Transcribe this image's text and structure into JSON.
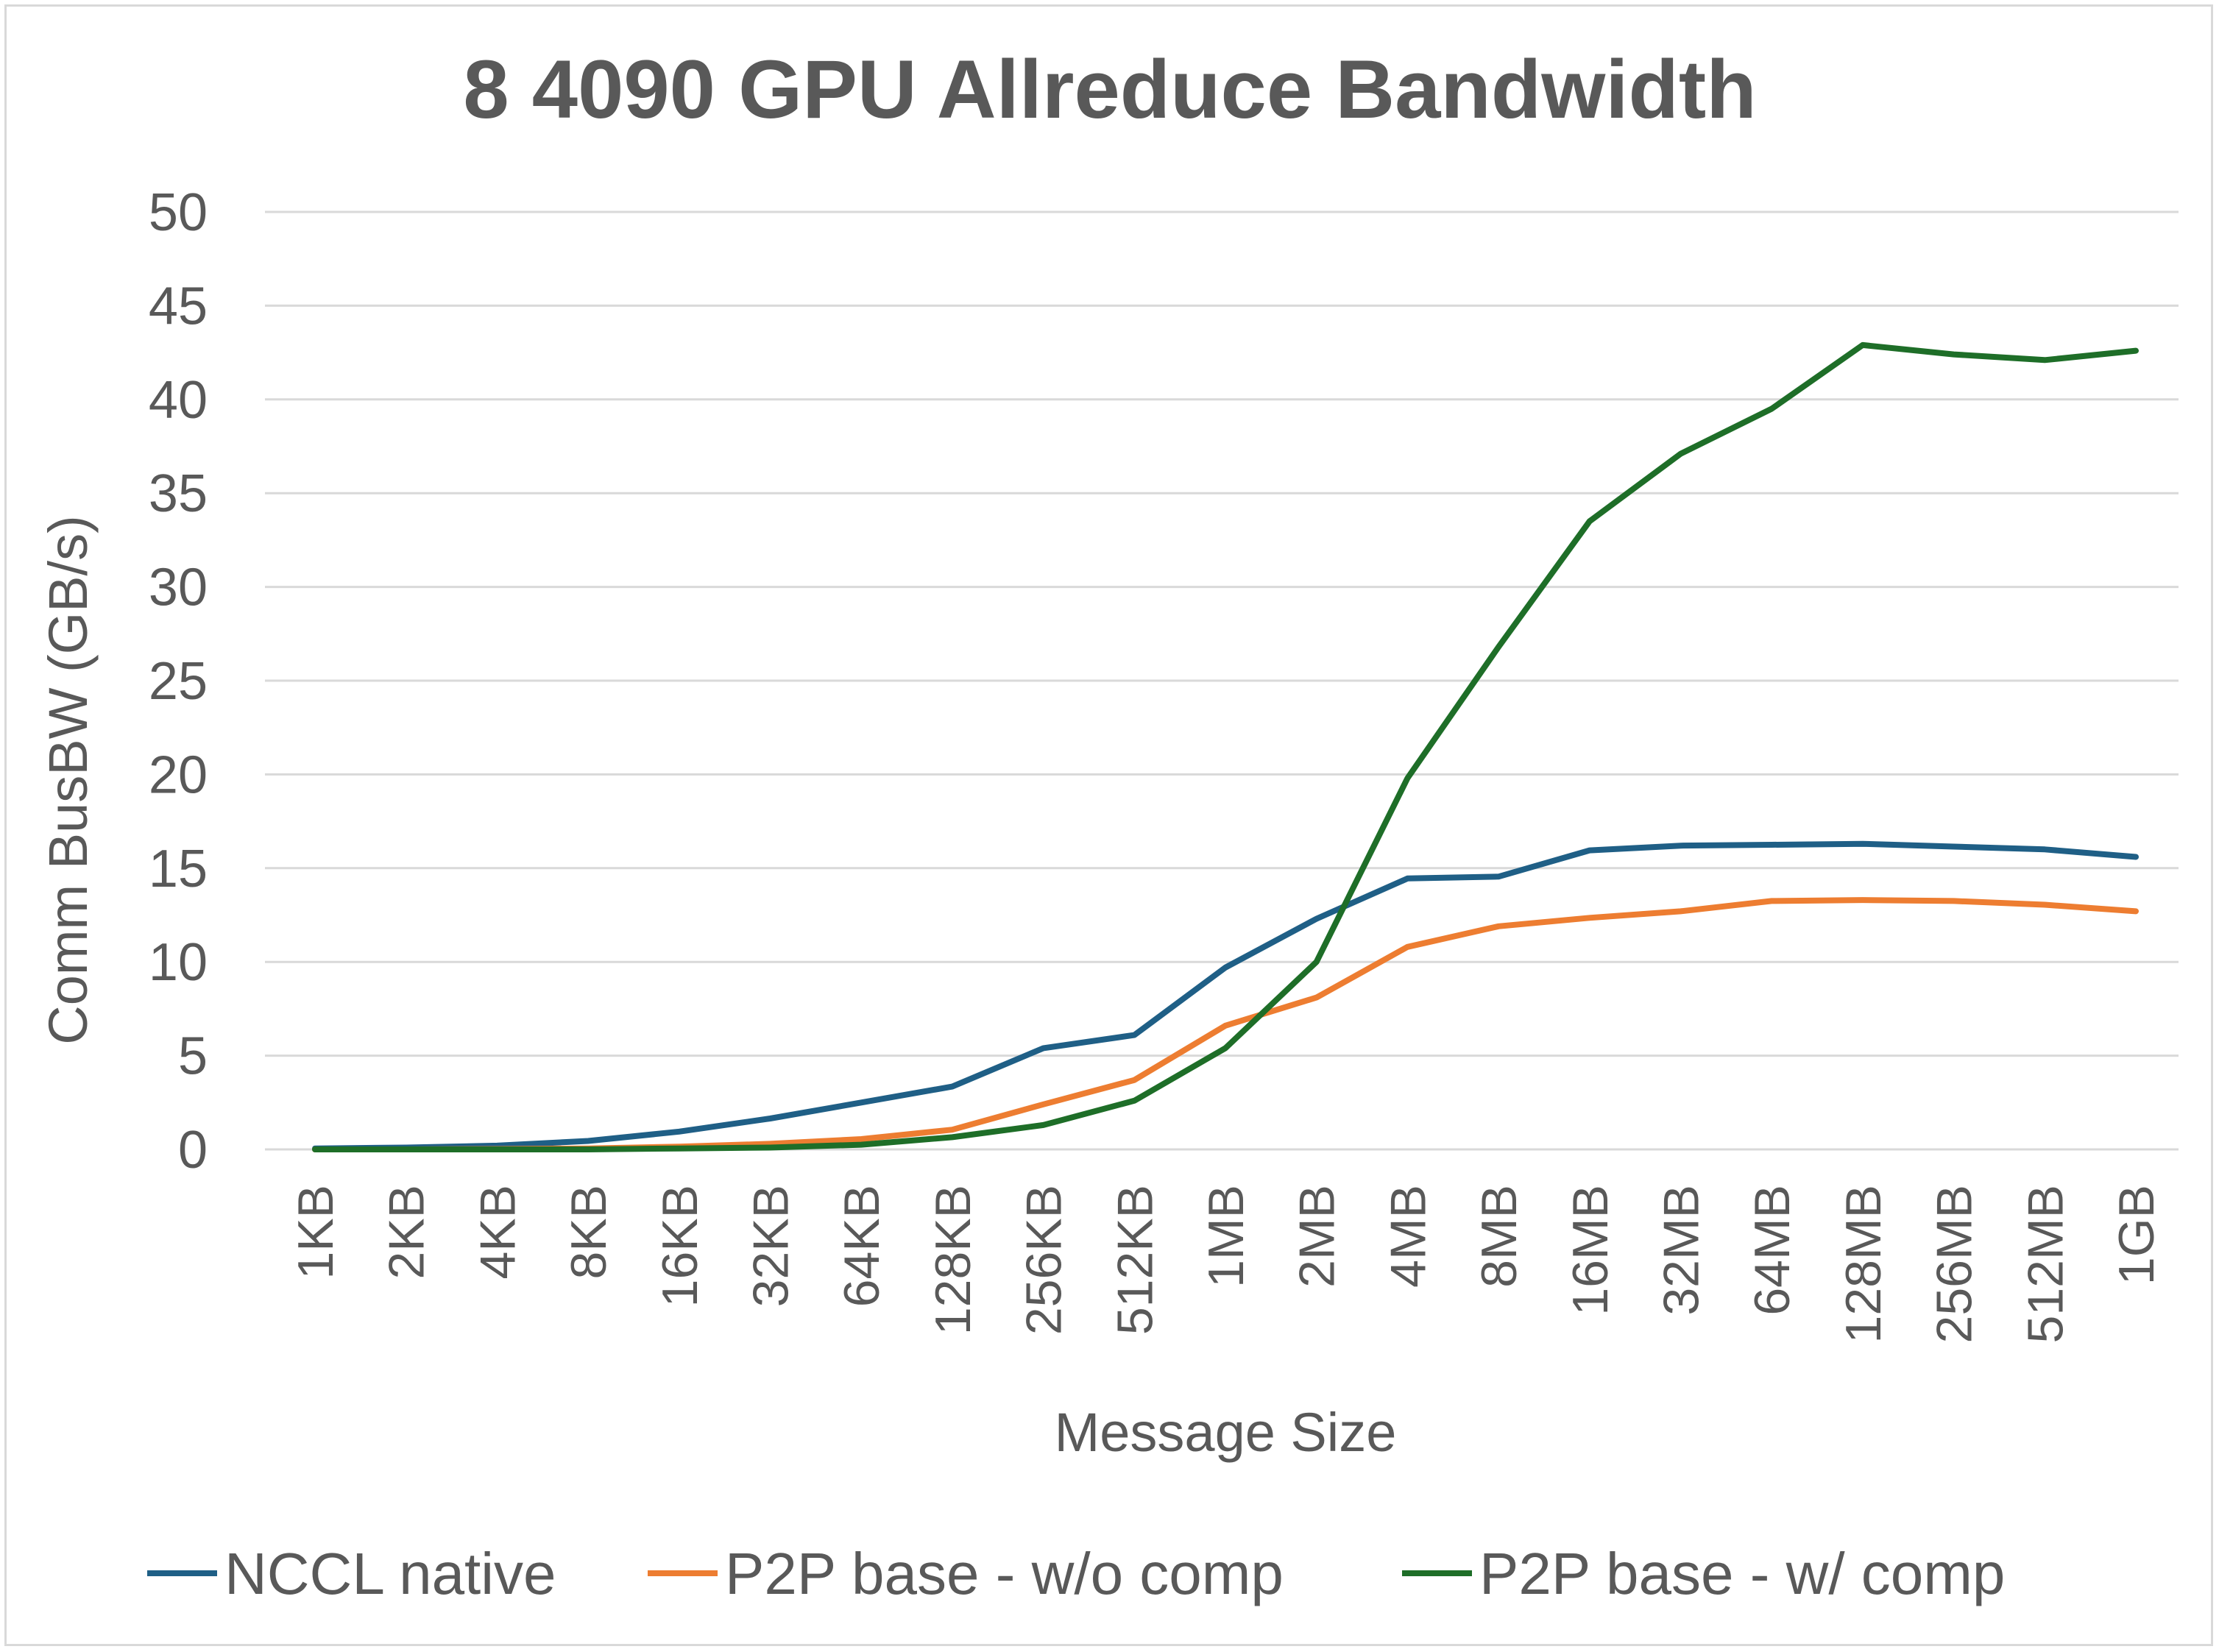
{
  "chart_data": {
    "type": "line",
    "title": "8 4090 GPU Allreduce Bandwidth",
    "xlabel": "Message Size",
    "ylabel": "Comm BusBW (GB/s)",
    "ylim": [
      0,
      50
    ],
    "yticks": [
      "0",
      "5",
      "10",
      "15",
      "20",
      "25",
      "30",
      "35",
      "40",
      "45",
      "50"
    ],
    "grid": "horizontal",
    "legend_position": "bottom",
    "categories": [
      "1KB",
      "2KB",
      "4KB",
      "8KB",
      "16KB",
      "32KB",
      "64KB",
      "128KB",
      "256KB",
      "512KB",
      "1MB",
      "2MB",
      "4MB",
      "8MB",
      "16MB",
      "32MB",
      "64MB",
      "128MB",
      "256MB",
      "512MB",
      "1GB"
    ],
    "series": [
      {
        "name": "NCCL native",
        "color": "#1f5f86",
        "values": [
          0.05,
          0.1,
          0.2,
          0.45,
          0.95,
          1.65,
          2.5,
          3.35,
          5.4,
          6.1,
          9.7,
          12.3,
          14.45,
          14.55,
          15.95,
          16.2,
          16.25,
          16.3,
          16.15,
          16.0,
          15.6
        ]
      },
      {
        "name": "P2P base - w/o comp",
        "color": "#ed7d31",
        "values": [
          0.0,
          0.0,
          0.02,
          0.05,
          0.15,
          0.3,
          0.55,
          1.05,
          2.4,
          3.7,
          6.6,
          8.1,
          10.8,
          11.9,
          12.35,
          12.7,
          13.25,
          13.3,
          13.25,
          13.05,
          12.7
        ]
      },
      {
        "name": "P2P base - w/ comp",
        "color": "#1e6e28",
        "values": [
          0.0,
          0.0,
          0.0,
          0.0,
          0.05,
          0.1,
          0.25,
          0.65,
          1.3,
          2.6,
          5.4,
          10.0,
          19.8,
          26.8,
          33.5,
          37.1,
          39.5,
          42.9,
          42.4,
          42.1,
          42.6
        ]
      }
    ]
  }
}
